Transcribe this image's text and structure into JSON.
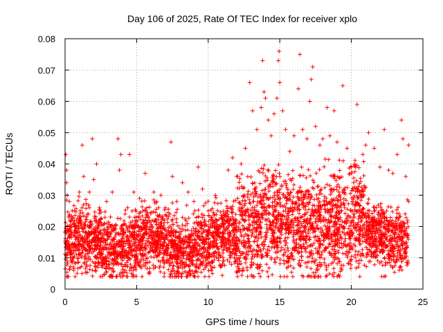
{
  "chart_data": {
    "type": "scatter",
    "title": "Day 106 of 2025, Rate Of TEC Index for receiver xplo",
    "xlabel": "GPS time / hours",
    "ylabel": "ROTI / TECUs",
    "xlim": [
      0,
      25
    ],
    "ylim": [
      0,
      0.08
    ],
    "xticks": [
      "0",
      "5",
      "10",
      "15",
      "20",
      "25"
    ],
    "yticks": [
      "0",
      "0.01",
      "0.02",
      "0.03",
      "0.04",
      "0.05",
      "0.06",
      "0.07",
      "0.08"
    ],
    "xtick_values": [
      0,
      5,
      10,
      15,
      20,
      25
    ],
    "ytick_values": [
      0,
      0.01,
      0.02,
      0.03,
      0.04,
      0.05,
      0.06,
      0.07,
      0.08
    ],
    "grid": true,
    "marker": "plus",
    "color": "#ff0000",
    "series": [
      {
        "points": [
          [
            0.05,
            0.043
          ],
          [
            0.1,
            0.038
          ],
          [
            0.1,
            0.034
          ],
          [
            0.15,
            0.03
          ],
          [
            0.3,
            0.028
          ],
          [
            0.5,
            0.025
          ],
          [
            0.5,
            0.009
          ],
          [
            0.6,
            0.006
          ],
          [
            0.7,
            0.004
          ],
          [
            1.0,
            0.031
          ],
          [
            1.2,
            0.046
          ],
          [
            1.3,
            0.036
          ],
          [
            1.7,
            0.031
          ],
          [
            1.9,
            0.048
          ],
          [
            2.0,
            0.035
          ],
          [
            2.2,
            0.04
          ],
          [
            2.4,
            0.026
          ],
          [
            2.6,
            0.004
          ],
          [
            2.9,
            0.028
          ],
          [
            3.3,
            0.031
          ],
          [
            3.7,
            0.048
          ],
          [
            3.8,
            0.038
          ],
          [
            3.9,
            0.043
          ],
          [
            4.2,
            0.024
          ],
          [
            4.5,
            0.043
          ],
          [
            4.8,
            0.031
          ],
          [
            5.2,
            0.029
          ],
          [
            5.6,
            0.037
          ],
          [
            5.9,
            0.005
          ],
          [
            6.2,
            0.031
          ],
          [
            6.7,
            0.03
          ],
          [
            7.0,
            0.026
          ],
          [
            7.4,
            0.047
          ],
          [
            7.5,
            0.036
          ],
          [
            7.6,
            0.006
          ],
          [
            7.8,
            0.028
          ],
          [
            8.2,
            0.034
          ],
          [
            8.6,
            0.031
          ],
          [
            9.0,
            0.028
          ],
          [
            9.3,
            0.039
          ],
          [
            9.6,
            0.032
          ],
          [
            10.0,
            0.025
          ],
          [
            10.5,
            0.03
          ],
          [
            11.0,
            0.008
          ],
          [
            11.4,
            0.038
          ],
          [
            11.7,
            0.042
          ],
          [
            12.0,
            0.036
          ],
          [
            12.3,
            0.04
          ],
          [
            12.6,
            0.045
          ],
          [
            12.9,
            0.066
          ],
          [
            13.1,
            0.057
          ],
          [
            13.4,
            0.051
          ],
          [
            13.7,
            0.058
          ],
          [
            13.8,
            0.073
          ],
          [
            13.9,
            0.063
          ],
          [
            14.0,
            0.061
          ],
          [
            14.2,
            0.054
          ],
          [
            14.4,
            0.049
          ],
          [
            14.6,
            0.056
          ],
          [
            14.8,
            0.061
          ],
          [
            14.9,
            0.073
          ],
          [
            14.95,
            0.076
          ],
          [
            15.0,
            0.066
          ],
          [
            15.2,
            0.057
          ],
          [
            15.4,
            0.051
          ],
          [
            15.7,
            0.044
          ],
          [
            16.0,
            0.049
          ],
          [
            16.3,
            0.064
          ],
          [
            16.4,
            0.075
          ],
          [
            16.6,
            0.051
          ],
          [
            16.9,
            0.048
          ],
          [
            17.1,
            0.06
          ],
          [
            17.2,
            0.067
          ],
          [
            17.3,
            0.071
          ],
          [
            17.5,
            0.052
          ],
          [
            17.8,
            0.046
          ],
          [
            18.0,
            0.048
          ],
          [
            18.3,
            0.058
          ],
          [
            18.5,
            0.049
          ],
          [
            18.8,
            0.057
          ],
          [
            19.0,
            0.047
          ],
          [
            19.4,
            0.065
          ],
          [
            19.7,
            0.045
          ],
          [
            20.0,
            0.039
          ],
          [
            20.4,
            0.059
          ],
          [
            20.8,
            0.043
          ],
          [
            21.0,
            0.046
          ],
          [
            21.2,
            0.05
          ],
          [
            21.6,
            0.045
          ],
          [
            22.0,
            0.039
          ],
          [
            22.3,
            0.051
          ],
          [
            22.6,
            0.038
          ],
          [
            22.9,
            0.037
          ],
          [
            23.2,
            0.043
          ],
          [
            23.5,
            0.054
          ],
          [
            23.6,
            0.048
          ],
          [
            23.8,
            0.036
          ],
          [
            24.0,
            0.046
          ],
          [
            24.0,
            0.028
          ]
        ]
      }
    ]
  }
}
